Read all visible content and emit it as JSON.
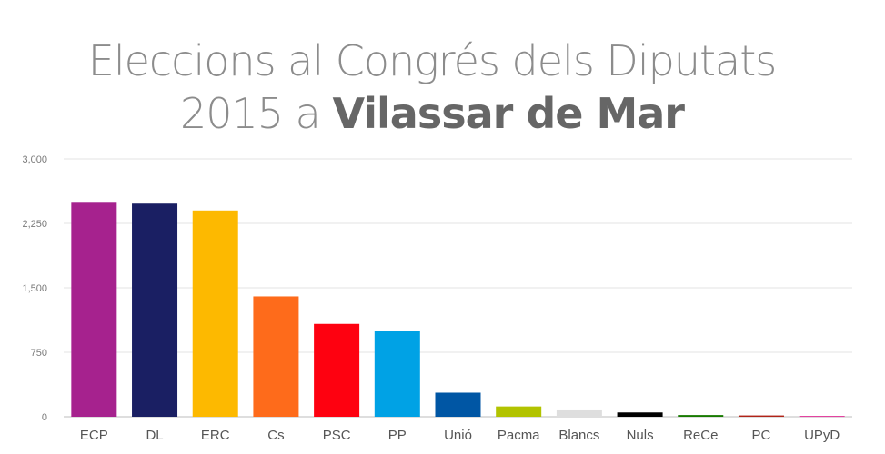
{
  "header": {
    "title_line1": "Eleccions al Congrés dels Diputats",
    "title_line2_prefix": "2015 a ",
    "title_line2_place": "Vilassar de Mar"
  },
  "chart_data": {
    "type": "bar",
    "title": "Eleccions al Congrés dels Diputats 2015 a Vilassar de Mar",
    "xlabel": "",
    "ylabel": "",
    "ylim": [
      0,
      3000
    ],
    "yticks": [
      0,
      750,
      1500,
      2250,
      3000
    ],
    "ytick_labels": [
      "0",
      "750",
      "1,500",
      "2,250",
      "3,000"
    ],
    "grid": true,
    "categories": [
      "ECP",
      "DL",
      "ERC",
      "Cs",
      "PSC",
      "PP",
      "Unió",
      "Pacma",
      "Blancs",
      "Nuls",
      "ReCe",
      "PC",
      "UPyD"
    ],
    "values": [
      2490,
      2480,
      2400,
      1400,
      1080,
      1000,
      280,
      120,
      85,
      50,
      20,
      15,
      10
    ],
    "colors": [
      "#a6228e",
      "#1a1f63",
      "#fdb900",
      "#fe6b1b",
      "#fe0110",
      "#00a2e5",
      "#0056a4",
      "#b2c300",
      "#dedede",
      "#000000",
      "#177a00",
      "#b02418",
      "#e0399b"
    ]
  }
}
